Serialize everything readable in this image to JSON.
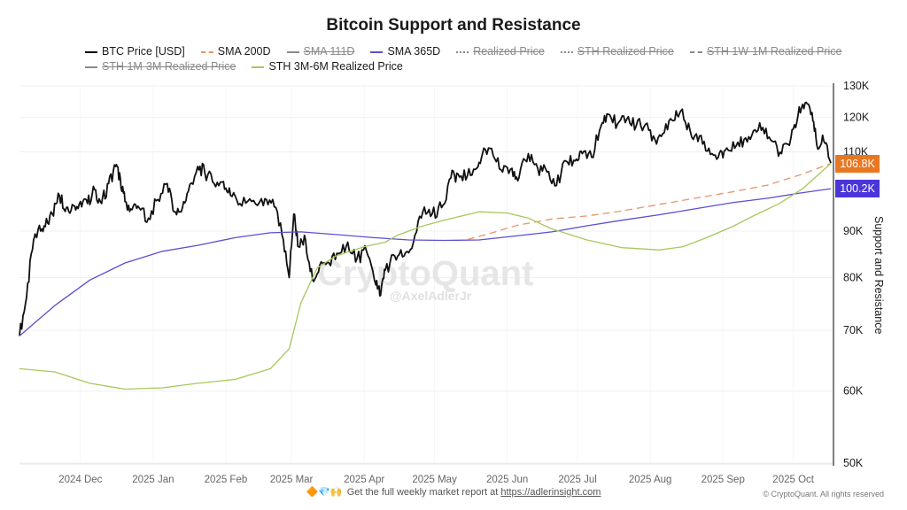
{
  "chart_data": {
    "type": "line",
    "title": "Bitcoin Support and Resistance",
    "xlabel": "",
    "ylabel": "Support and Resistance",
    "yscale": "log",
    "ylim": [
      50000,
      130000
    ],
    "yticks": [
      {
        "label": "130K",
        "value": 130000
      },
      {
        "label": "120K",
        "value": 120000
      },
      {
        "label": "110K",
        "value": 110000
      },
      {
        "label": "90K",
        "value": 90000
      },
      {
        "label": "80K",
        "value": 80000
      },
      {
        "label": "70K",
        "value": 70000
      },
      {
        "label": "60K",
        "value": 60000
      },
      {
        "label": "50K",
        "value": 50000
      }
    ],
    "xticks": [
      "2024 Dec",
      "2025 Jan",
      "2025 Feb",
      "2025 Mar",
      "2025 Apr",
      "2025 May",
      "2025 Jun",
      "2025 Jul",
      "2025 Aug",
      "2025 Sep",
      "2025 Oct"
    ],
    "x_range": [
      "2024-11-05",
      "2025-10-17"
    ],
    "grid": true,
    "legend_position": "top",
    "legend": [
      {
        "name": "BTC Price [USD]",
        "color": "#000000",
        "style": "solid",
        "visible": true
      },
      {
        "name": "SMA 200D",
        "color": "#e8956a",
        "style": "dashed",
        "visible": true
      },
      {
        "name": "SMA 111D",
        "color": "#888888",
        "style": "solid",
        "visible": false
      },
      {
        "name": "SMA 365D",
        "color": "#5b4fcf",
        "style": "solid",
        "visible": true
      },
      {
        "name": "Realized Price",
        "color": "#888888",
        "style": "dashdot",
        "visible": false
      },
      {
        "name": "STH Realized Price",
        "color": "#888888",
        "style": "dashdot",
        "visible": false
      },
      {
        "name": "STH 1W-1M Realized Price",
        "color": "#888888",
        "style": "dashed",
        "visible": false
      },
      {
        "name": "STH 1M-3M Realized Price",
        "color": "#888888",
        "style": "solid",
        "visible": false
      },
      {
        "name": "STH 3M-6M Realized Price",
        "color": "#a6c85a",
        "style": "solid",
        "visible": true
      }
    ],
    "series": [
      {
        "name": "BTC Price [USD]",
        "color": "#111111",
        "dates": [
          "2024-11-05",
          "2024-11-08",
          "2024-11-11",
          "2024-11-13",
          "2024-11-16",
          "2024-11-19",
          "2024-11-22",
          "2024-11-25",
          "2024-11-28",
          "2024-12-01",
          "2024-12-04",
          "2024-12-07",
          "2024-12-10",
          "2024-12-13",
          "2024-12-16",
          "2024-12-18",
          "2024-12-20",
          "2024-12-23",
          "2024-12-26",
          "2024-12-30",
          "2025-01-03",
          "2025-01-07",
          "2025-01-10",
          "2025-01-13",
          "2025-01-16",
          "2025-01-20",
          "2025-01-23",
          "2025-01-27",
          "2025-01-31",
          "2025-02-03",
          "2025-02-07",
          "2025-02-12",
          "2025-02-17",
          "2025-02-21",
          "2025-02-25",
          "2025-02-28",
          "2025-03-02",
          "2025-03-04",
          "2025-03-07",
          "2025-03-10",
          "2025-03-13",
          "2025-03-17",
          "2025-03-21",
          "2025-03-25",
          "2025-03-29",
          "2025-04-02",
          "2025-04-06",
          "2025-04-08",
          "2025-04-10",
          "2025-04-14",
          "2025-04-18",
          "2025-04-22",
          "2025-04-26",
          "2025-04-30",
          "2025-05-04",
          "2025-05-08",
          "2025-05-11",
          "2025-05-15",
          "2025-05-19",
          "2025-05-22",
          "2025-05-26",
          "2025-05-30",
          "2025-06-03",
          "2025-06-06",
          "2025-06-10",
          "2025-06-14",
          "2025-06-18",
          "2025-06-22",
          "2025-06-26",
          "2025-06-30",
          "2025-07-03",
          "2025-07-07",
          "2025-07-11",
          "2025-07-14",
          "2025-07-18",
          "2025-07-22",
          "2025-07-26",
          "2025-07-30",
          "2025-08-03",
          "2025-08-07",
          "2025-08-11",
          "2025-08-14",
          "2025-08-18",
          "2025-08-22",
          "2025-08-26",
          "2025-08-30",
          "2025-09-02",
          "2025-09-06",
          "2025-09-10",
          "2025-09-14",
          "2025-09-18",
          "2025-09-22",
          "2025-09-26",
          "2025-09-30",
          "2025-10-03",
          "2025-10-06",
          "2025-10-09",
          "2025-10-11",
          "2025-10-14",
          "2025-10-17"
        ],
        "values": [
          69000,
          76000,
          88000,
          90500,
          91000,
          94000,
          98500,
          95500,
          96000,
          97000,
          96500,
          100000,
          96500,
          101500,
          106000,
          103000,
          97000,
          95000,
          95500,
          93000,
          97500,
          101500,
          94500,
          94500,
          99500,
          106000,
          104500,
          101500,
          102000,
          98500,
          96500,
          97000,
          96000,
          97500,
          89000,
          80000,
          94000,
          86500,
          88000,
          79500,
          82500,
          83000,
          85000,
          87500,
          84000,
          85500,
          78500,
          76500,
          81500,
          84500,
          84500,
          87500,
          94500,
          94000,
          95500,
          103000,
          104000,
          103500,
          105500,
          111000,
          109000,
          104500,
          105500,
          103000,
          109500,
          105500,
          104500,
          101000,
          107500,
          107500,
          109500,
          108500,
          117500,
          121000,
          118000,
          119500,
          117500,
          118000,
          113500,
          115500,
          119000,
          122000,
          116000,
          114500,
          111000,
          108500,
          110500,
          111000,
          113500,
          116000,
          117000,
          113000,
          109500,
          114000,
          120500,
          124500,
          121500,
          112000,
          113000,
          106900
        ]
      },
      {
        "name": "SMA 365D",
        "color": "#5b4fcf",
        "dates": [
          "2024-11-05",
          "2024-11-20",
          "2024-12-05",
          "2024-12-20",
          "2025-01-05",
          "2025-01-20",
          "2025-02-05",
          "2025-02-20",
          "2025-03-05",
          "2025-03-20",
          "2025-04-05",
          "2025-04-20",
          "2025-05-05",
          "2025-05-20",
          "2025-06-05",
          "2025-06-20",
          "2025-07-05",
          "2025-07-20",
          "2025-08-05",
          "2025-08-20",
          "2025-09-05",
          "2025-09-20",
          "2025-10-05",
          "2025-10-17"
        ],
        "values": [
          69000,
          74500,
          79500,
          83000,
          85500,
          86800,
          88500,
          89600,
          89800,
          89200,
          88500,
          88000,
          87900,
          88000,
          88900,
          89800,
          91200,
          92500,
          93800,
          95200,
          96700,
          97800,
          99200,
          100200
        ]
      },
      {
        "name": "SMA 200D",
        "color": "#e8956a",
        "dashed": true,
        "dates": [
          "2025-05-15",
          "2025-05-25",
          "2025-06-05",
          "2025-06-20",
          "2025-07-05",
          "2025-07-20",
          "2025-08-05",
          "2025-08-20",
          "2025-09-05",
          "2025-09-20",
          "2025-10-05",
          "2025-10-17"
        ],
        "values": [
          88100,
          89500,
          91300,
          92800,
          93500,
          94700,
          96300,
          97800,
          99400,
          101100,
          104000,
          106800
        ]
      },
      {
        "name": "STH 3M-6M Realized Price",
        "color": "#a6c85a",
        "dates": [
          "2024-11-05",
          "2024-11-20",
          "2024-12-05",
          "2024-12-20",
          "2025-01-05",
          "2025-01-20",
          "2025-02-05",
          "2025-02-20",
          "2025-02-28",
          "2025-03-05",
          "2025-03-12",
          "2025-03-20",
          "2025-04-01",
          "2025-04-10",
          "2025-04-15",
          "2025-04-25",
          "2025-05-05",
          "2025-05-20",
          "2025-06-01",
          "2025-06-10",
          "2025-06-20",
          "2025-07-05",
          "2025-07-20",
          "2025-08-05",
          "2025-08-15",
          "2025-08-25",
          "2025-09-05",
          "2025-09-15",
          "2025-09-25",
          "2025-10-05",
          "2025-10-17"
        ],
        "values": [
          63500,
          63000,
          61200,
          60300,
          60500,
          61200,
          61800,
          63500,
          66800,
          75000,
          82000,
          84500,
          86500,
          87500,
          89000,
          91000,
          92500,
          94500,
          94200,
          93000,
          90500,
          88000,
          86300,
          85800,
          86500,
          88500,
          91000,
          93800,
          96500,
          100200,
          106800
        ]
      }
    ],
    "current_value_badges": [
      {
        "label": "106.8K",
        "value": 106800,
        "color": "#e87722"
      },
      {
        "label": "100.2K",
        "value": 100200,
        "color": "#4a36d8"
      }
    ],
    "watermark": {
      "main": "CryptoQuant",
      "sub": "@AxelAdlerJr"
    }
  },
  "footer": {
    "emojis": "🔶💎🙌",
    "text": "Get the full weekly market report at ",
    "link": "https://adlerinsight.com",
    "copyright": "© CryptoQuant. All rights reserved"
  }
}
